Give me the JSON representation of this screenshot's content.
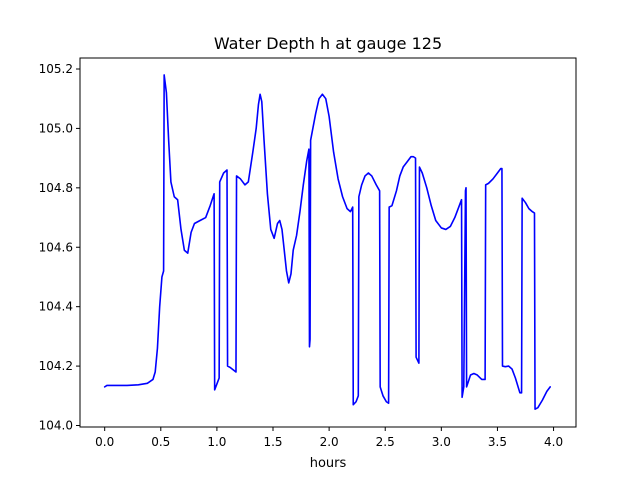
{
  "chart_data": {
    "type": "line",
    "title": "Water Depth h at gauge 125",
    "xlabel": "hours",
    "ylabel": "",
    "xlim": [
      -0.22,
      4.2
    ],
    "ylim": [
      103.995,
      105.237
    ],
    "x_ticks": [
      0.0,
      0.5,
      1.0,
      1.5,
      2.0,
      2.5,
      3.0,
      3.5,
      4.0
    ],
    "x_tick_labels": [
      "0.0",
      "0.5",
      "1.0",
      "1.5",
      "2.0",
      "2.5",
      "3.0",
      "3.5",
      "4.0"
    ],
    "y_ticks": [
      104.0,
      104.2,
      104.4,
      104.6,
      104.8,
      105.0,
      105.2
    ],
    "y_tick_labels": [
      "104.0",
      "104.2",
      "104.4",
      "104.6",
      "104.8",
      "105.0",
      "105.2"
    ],
    "grid": false,
    "legend": "none",
    "series": [
      {
        "color": "#0000ff",
        "points": [
          [
            0.0,
            104.13
          ],
          [
            0.02,
            104.135
          ],
          [
            0.2,
            104.135
          ],
          [
            0.3,
            104.137
          ],
          [
            0.38,
            104.142
          ],
          [
            0.43,
            104.155
          ],
          [
            0.45,
            104.18
          ],
          [
            0.47,
            104.26
          ],
          [
            0.49,
            104.4
          ],
          [
            0.51,
            104.5
          ],
          [
            0.525,
            104.52
          ],
          [
            0.53,
            105.18
          ],
          [
            0.55,
            105.12
          ],
          [
            0.57,
            104.96
          ],
          [
            0.59,
            104.82
          ],
          [
            0.62,
            104.77
          ],
          [
            0.65,
            104.76
          ],
          [
            0.68,
            104.66
          ],
          [
            0.71,
            104.59
          ],
          [
            0.74,
            104.58
          ],
          [
            0.77,
            104.65
          ],
          [
            0.8,
            104.68
          ],
          [
            0.85,
            104.69
          ],
          [
            0.9,
            104.7
          ],
          [
            0.94,
            104.74
          ],
          [
            0.975,
            104.78
          ],
          [
            0.98,
            104.12
          ],
          [
            1.0,
            104.14
          ],
          [
            1.02,
            104.16
          ],
          [
            1.025,
            104.82
          ],
          [
            1.06,
            104.85
          ],
          [
            1.09,
            104.86
          ],
          [
            1.095,
            104.2
          ],
          [
            1.12,
            104.195
          ],
          [
            1.17,
            104.18
          ],
          [
            1.175,
            104.84
          ],
          [
            1.21,
            104.83
          ],
          [
            1.25,
            104.81
          ],
          [
            1.28,
            104.82
          ],
          [
            1.32,
            104.92
          ],
          [
            1.35,
            105.0
          ],
          [
            1.37,
            105.08
          ],
          [
            1.385,
            105.115
          ],
          [
            1.4,
            105.09
          ],
          [
            1.42,
            104.96
          ],
          [
            1.45,
            104.78
          ],
          [
            1.48,
            104.66
          ],
          [
            1.51,
            104.63
          ],
          [
            1.54,
            104.68
          ],
          [
            1.56,
            104.69
          ],
          [
            1.58,
            104.66
          ],
          [
            1.6,
            104.59
          ],
          [
            1.62,
            104.52
          ],
          [
            1.64,
            104.48
          ],
          [
            1.66,
            104.51
          ],
          [
            1.68,
            104.59
          ],
          [
            1.71,
            104.64
          ],
          [
            1.74,
            104.72
          ],
          [
            1.77,
            104.81
          ],
          [
            1.8,
            104.89
          ],
          [
            1.82,
            104.93
          ],
          [
            1.825,
            104.265
          ],
          [
            1.83,
            104.29
          ],
          [
            1.835,
            104.96
          ],
          [
            1.86,
            105.01
          ],
          [
            1.88,
            105.05
          ],
          [
            1.91,
            105.1
          ],
          [
            1.94,
            105.115
          ],
          [
            1.97,
            105.1
          ],
          [
            2.0,
            105.04
          ],
          [
            2.04,
            104.92
          ],
          [
            2.08,
            104.83
          ],
          [
            2.12,
            104.77
          ],
          [
            2.16,
            104.73
          ],
          [
            2.19,
            104.72
          ],
          [
            2.21,
            104.735
          ],
          [
            2.215,
            104.07
          ],
          [
            2.24,
            104.08
          ],
          [
            2.26,
            104.1
          ],
          [
            2.265,
            104.77
          ],
          [
            2.29,
            104.81
          ],
          [
            2.32,
            104.84
          ],
          [
            2.35,
            104.85
          ],
          [
            2.38,
            104.84
          ],
          [
            2.42,
            104.81
          ],
          [
            2.45,
            104.79
          ],
          [
            2.455,
            104.13
          ],
          [
            2.48,
            104.1
          ],
          [
            2.51,
            104.08
          ],
          [
            2.53,
            104.075
          ],
          [
            2.535,
            104.735
          ],
          [
            2.56,
            104.74
          ],
          [
            2.6,
            104.79
          ],
          [
            2.63,
            104.84
          ],
          [
            2.66,
            104.87
          ],
          [
            2.7,
            104.89
          ],
          [
            2.73,
            104.905
          ],
          [
            2.75,
            104.905
          ],
          [
            2.77,
            104.9
          ],
          [
            2.775,
            104.23
          ],
          [
            2.8,
            104.21
          ],
          [
            2.805,
            104.87
          ],
          [
            2.83,
            104.85
          ],
          [
            2.87,
            104.8
          ],
          [
            2.91,
            104.74
          ],
          [
            2.95,
            104.69
          ],
          [
            3.0,
            104.665
          ],
          [
            3.04,
            104.66
          ],
          [
            3.08,
            104.67
          ],
          [
            3.12,
            104.7
          ],
          [
            3.16,
            104.74
          ],
          [
            3.18,
            104.76
          ],
          [
            3.185,
            104.095
          ],
          [
            3.2,
            104.13
          ],
          [
            3.215,
            104.79
          ],
          [
            3.22,
            104.8
          ],
          [
            3.225,
            104.13
          ],
          [
            3.26,
            104.17
          ],
          [
            3.29,
            104.175
          ],
          [
            3.32,
            104.17
          ],
          [
            3.36,
            104.155
          ],
          [
            3.39,
            104.155
          ],
          [
            3.395,
            104.81
          ],
          [
            3.42,
            104.815
          ],
          [
            3.46,
            104.83
          ],
          [
            3.5,
            104.85
          ],
          [
            3.53,
            104.865
          ],
          [
            3.54,
            104.865
          ],
          [
            3.545,
            104.2
          ],
          [
            3.57,
            104.198
          ],
          [
            3.6,
            104.2
          ],
          [
            3.63,
            104.19
          ],
          [
            3.66,
            104.16
          ],
          [
            3.7,
            104.11
          ],
          [
            3.715,
            104.11
          ],
          [
            3.72,
            104.765
          ],
          [
            3.75,
            104.75
          ],
          [
            3.78,
            104.73
          ],
          [
            3.81,
            104.72
          ],
          [
            3.83,
            104.715
          ],
          [
            3.835,
            104.055
          ],
          [
            3.86,
            104.06
          ],
          [
            3.9,
            104.085
          ],
          [
            3.94,
            104.115
          ],
          [
            3.97,
            104.13
          ]
        ]
      }
    ]
  }
}
